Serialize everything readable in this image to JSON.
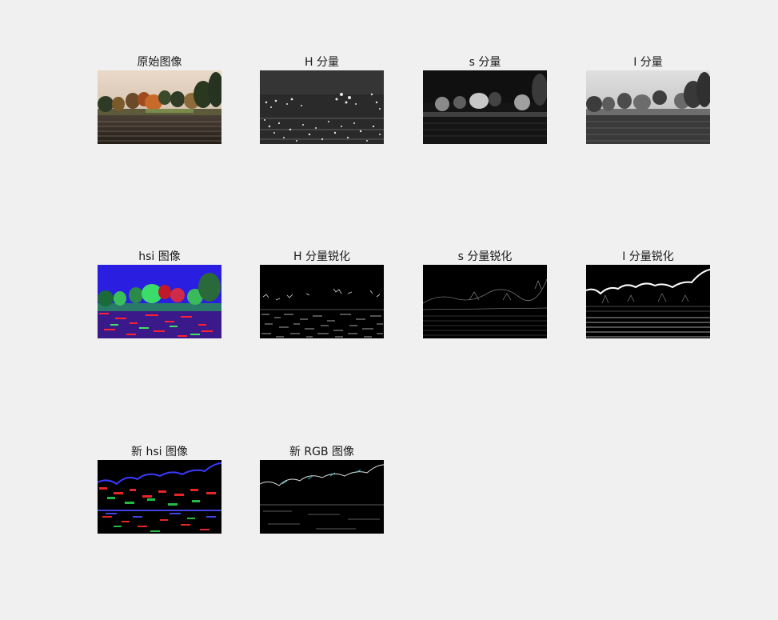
{
  "panels": [
    {
      "title": "原始图像"
    },
    {
      "title": "H 分量"
    },
    {
      "title": "s 分量"
    },
    {
      "title": "I 分量"
    },
    {
      "title": "hsi 图像"
    },
    {
      "title": "H 分量锐化"
    },
    {
      "title": "s 分量锐化"
    },
    {
      "title": "I 分量锐化"
    },
    {
      "title": "新 hsi 图像"
    },
    {
      "title": "新 RGB 图像"
    }
  ]
}
